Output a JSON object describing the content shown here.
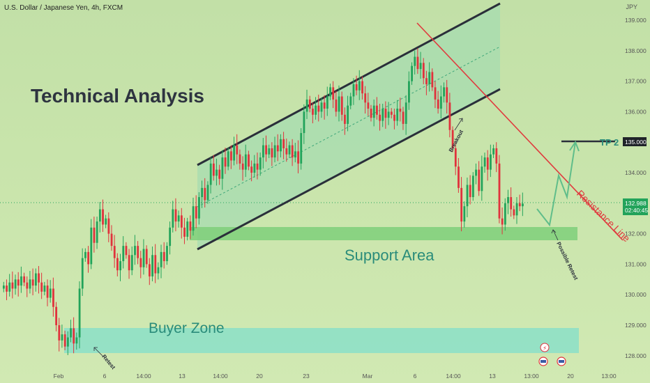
{
  "header": {
    "symbol": "U.S. Dollar / Japanese Yen, 4h, FXCM",
    "currency": "JPY"
  },
  "annotations": {
    "title": "Technical Analysis",
    "support": "Support Area",
    "buyer": "Buyer Zone",
    "tp": "TP 2",
    "resistance": "Resistance Line",
    "breakout": "Breakout",
    "retest": "Retest",
    "possible_retest": "Possible Retest"
  },
  "price_labels": {
    "tp_value": "135.000",
    "last_price": "132.988",
    "countdown": "02:40:45"
  },
  "colors": {
    "up": "#22a35a",
    "down": "#e0323c",
    "support": "#7fcf7a",
    "buyer": "#8ee0c6",
    "channel": "#a4dcb0",
    "channel_line": "#2a2f3a",
    "resistance": "#e03a3e",
    "projection": "#5fbd8a"
  },
  "chart_data": {
    "type": "candlestick",
    "title": "U.S. Dollar / Japanese Yen, 4h, FXCM",
    "y_axis": {
      "label": "JPY",
      "ticks": [
        "139.000",
        "138.000",
        "137.000",
        "136.000",
        "135.000",
        "134.000",
        "133.000",
        "132.000",
        "131.000",
        "130.000",
        "129.000",
        "128.000"
      ],
      "ylim": [
        127.9,
        139.25
      ]
    },
    "x_axis": {
      "ticks": [
        "Feb",
        "6",
        "14:00",
        "13",
        "14:00",
        "20",
        "23",
        "Mar",
        "6",
        "14:00",
        "13",
        "13:00",
        "20",
        "13:00"
      ]
    },
    "key_levels": {
      "tp2": 135.0,
      "last": 132.988,
      "support_area": [
        131.8,
        132.3
      ],
      "buyer_zone": [
        128.1,
        128.9
      ]
    },
    "closes": [
      130.3,
      130.1,
      130.4,
      130.2,
      130.5,
      130.3,
      130.6,
      130.4,
      130.2,
      130.5,
      130.3,
      130.7,
      130.4,
      130.1,
      130.3,
      129.9,
      130.2,
      129.6,
      129.0,
      128.5,
      128.7,
      128.3,
      128.6,
      128.9,
      128.4,
      128.6,
      130.2,
      131.2,
      131.4,
      131.0,
      132.2,
      131.7,
      132.4,
      132.8,
      132.3,
      132.5,
      132.0,
      131.6,
      131.2,
      130.8,
      131.1,
      131.6,
      131.3,
      130.8,
      131.3,
      131.6,
      131.2,
      130.9,
      131.5,
      131.0,
      130.6,
      131.3,
      130.7,
      130.9,
      131.4,
      131.1,
      131.6,
      132.2,
      132.8,
      132.4,
      132.6,
      132.2,
      131.9,
      132.4,
      132.1,
      132.9,
      132.5,
      133.2,
      133.5,
      133.1,
      133.6,
      134.3,
      133.9,
      134.1,
      133.8,
      134.5,
      134.2,
      134.7,
      134.4,
      134.9,
      134.6,
      134.3,
      134.1,
      134.6,
      134.2,
      134.0,
      134.3,
      134.1,
      134.5,
      134.9,
      134.6,
      134.8,
      134.5,
      134.9,
      134.7,
      135.1,
      134.8,
      134.6,
      134.9,
      134.5,
      134.7,
      134.3,
      135.3,
      136.0,
      136.4,
      136.1,
      135.9,
      136.2,
      136.0,
      136.3,
      136.1,
      136.5,
      136.8,
      136.4,
      136.0,
      136.5,
      135.9,
      135.6,
      136.2,
      136.5,
      136.9,
      136.7,
      137.0,
      136.6,
      136.3,
      136.1,
      135.8,
      136.2,
      135.9,
      135.7,
      136.1,
      135.8,
      136.0,
      135.9,
      135.7,
      136.1,
      136.0,
      135.6,
      136.3,
      137.0,
      137.5,
      137.8,
      137.4,
      137.6,
      137.1,
      136.9,
      137.3,
      136.8,
      136.4,
      136.1,
      136.5,
      136.8,
      136.3,
      135.4,
      134.8,
      134.2,
      133.5,
      132.4,
      132.9,
      133.6,
      133.2,
      133.9,
      134.1,
      133.4,
      134.2,
      134.5,
      134.1,
      134.6,
      134.8,
      134.3,
      132.5,
      132.3,
      133.0,
      133.2,
      132.8,
      132.6,
      133.0,
      132.9,
      132.988
    ]
  }
}
